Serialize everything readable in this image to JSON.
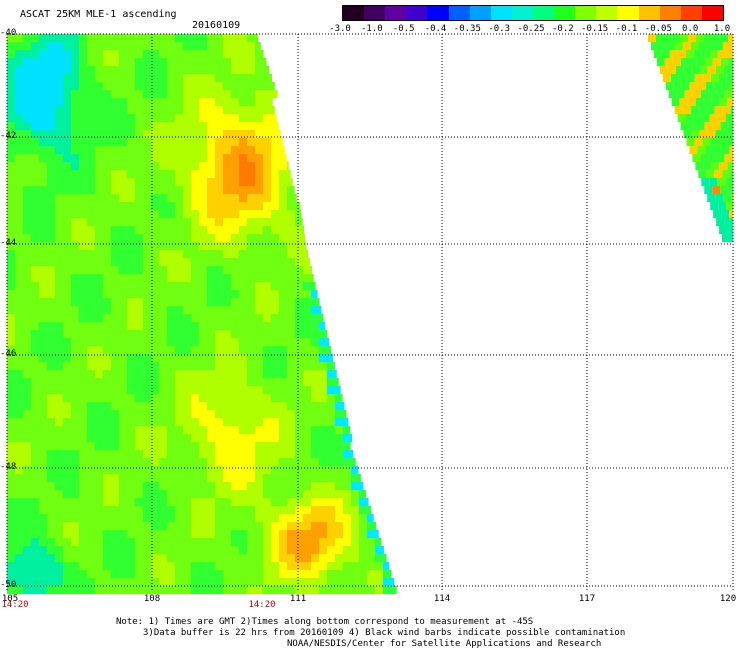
{
  "title": "ASCAT 25KM MLE-1 ascending",
  "date": "20160109",
  "colorbar": {
    "labels": [
      "-3.0",
      "-1.0",
      "-0.5",
      "-0.4",
      "-0.35",
      "-0.3",
      "-0.25",
      "-0.2",
      "-0.15",
      "-0.1",
      "-0.05",
      "0.0",
      "1.0"
    ],
    "colors": [
      "#200020",
      "#400060",
      "#6000a0",
      "#4000d0",
      "#0000ff",
      "#0060ff",
      "#00a0ff",
      "#00e0ff",
      "#00f0d0",
      "#00ff80",
      "#20ff20",
      "#80ff00",
      "#c0ff00",
      "#ffff00",
      "#ffc000",
      "#ff8000",
      "#ff4000",
      "#ff0000"
    ]
  },
  "map": {
    "lat_labels": [
      "-40",
      "-42",
      "-44",
      "-46",
      "-48",
      "-50"
    ],
    "lon_labels": [
      "105",
      "108",
      "111",
      "114",
      "117",
      "120"
    ],
    "time_labels": [
      "14:20",
      "14:20"
    ]
  },
  "notes": [
    "Note: 1) Times are GMT 2)Times along bottom correspond to measurement at -45S",
    "3)Data buffer is 22 hrs from 20160109 4) Black wind barbs indicate possible contamination",
    "NOAA/NESDIS/Center for Satellite Applications and Research"
  ]
}
